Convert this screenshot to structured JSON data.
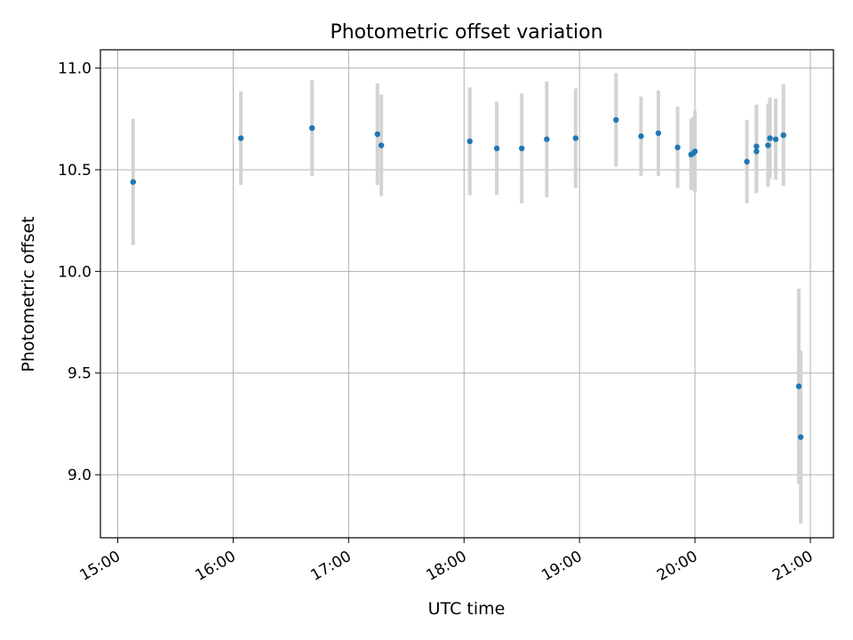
{
  "chart_data": {
    "type": "scatter",
    "title": "Photometric offset variation",
    "xlabel": "UTC time",
    "ylabel": "Photometric offset",
    "x_tick_labels": [
      "15:00",
      "16:00",
      "17:00",
      "18:00",
      "19:00",
      "20:00",
      "21:00"
    ],
    "y_tick_labels": [
      "9.0",
      "9.5",
      "10.0",
      "10.5",
      "11.0"
    ],
    "xlim": [
      "14:51",
      "21:12"
    ],
    "ylim": [
      8.69,
      11.09
    ],
    "grid": true,
    "legend": "none",
    "colors": {
      "marker": "#1f77b4",
      "errorbar": "#d3d3d3",
      "grid": "#b0b0b0"
    },
    "points": [
      {
        "x": "15:08",
        "y": 10.44,
        "yerr": 0.31
      },
      {
        "x": "16:04",
        "y": 10.655,
        "yerr": 0.23
      },
      {
        "x": "16:41",
        "y": 10.705,
        "yerr": 0.235
      },
      {
        "x": "17:15",
        "y": 10.675,
        "yerr": 0.25
      },
      {
        "x": "17:17",
        "y": 10.62,
        "yerr": 0.25
      },
      {
        "x": "18:03",
        "y": 10.64,
        "yerr": 0.265
      },
      {
        "x": "18:17",
        "y": 10.605,
        "yerr": 0.23
      },
      {
        "x": "18:30",
        "y": 10.605,
        "yerr": 0.27
      },
      {
        "x": "18:43",
        "y": 10.65,
        "yerr": 0.285
      },
      {
        "x": "18:58",
        "y": 10.655,
        "yerr": 0.245
      },
      {
        "x": "19:19",
        "y": 10.745,
        "yerr": 0.23
      },
      {
        "x": "19:32",
        "y": 10.665,
        "yerr": 0.195
      },
      {
        "x": "19:41",
        "y": 10.68,
        "yerr": 0.21
      },
      {
        "x": "19:51",
        "y": 10.61,
        "yerr": 0.2
      },
      {
        "x": "19:58",
        "y": 10.575,
        "yerr": 0.175
      },
      {
        "x": "19:59",
        "y": 10.58,
        "yerr": 0.18
      },
      {
        "x": "20:00",
        "y": 10.59,
        "yerr": 0.2
      },
      {
        "x": "20:27",
        "y": 10.54,
        "yerr": 0.205
      },
      {
        "x": "20:32",
        "y": 10.615,
        "yerr": 0.205
      },
      {
        "x": "20:32",
        "y": 10.59,
        "yerr": 0.205
      },
      {
        "x": "20:38",
        "y": 10.62,
        "yerr": 0.205
      },
      {
        "x": "20:39",
        "y": 10.655,
        "yerr": 0.2
      },
      {
        "x": "20:42",
        "y": 10.65,
        "yerr": 0.2
      },
      {
        "x": "20:46",
        "y": 10.67,
        "yerr": 0.25
      },
      {
        "x": "20:54",
        "y": 9.435,
        "yerr": 0.48
      },
      {
        "x": "20:55",
        "y": 9.185,
        "yerr": 0.425
      }
    ]
  }
}
